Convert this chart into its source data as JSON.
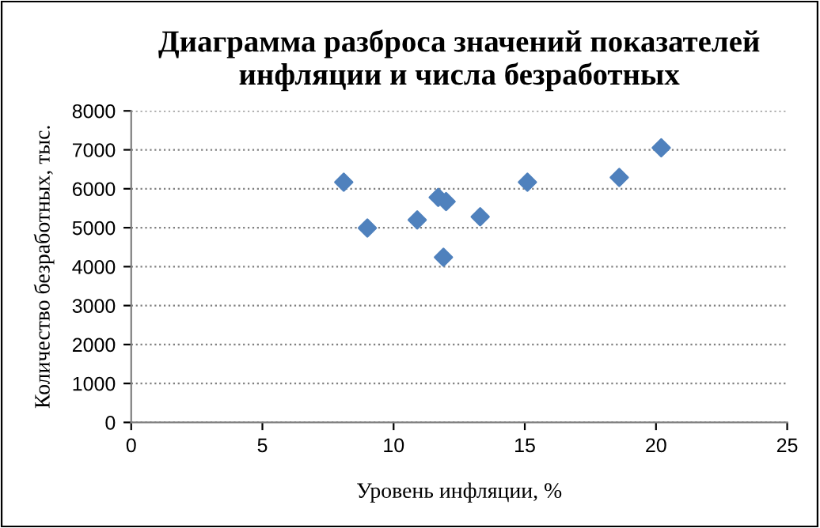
{
  "chart_data": {
    "type": "scatter",
    "title": "Диаграмма разброса значений показателей\nинфляции и числа безработных",
    "xlabel": "Уровень инфляции, %",
    "ylabel": "Количество безработных, тыс.",
    "x": [
      8.1,
      9.0,
      10.9,
      11.7,
      12.0,
      11.9,
      13.3,
      15.1,
      18.6,
      20.2
    ],
    "values": [
      6170,
      4990,
      5200,
      5780,
      5670,
      4240,
      5280,
      6170,
      6290,
      7050
    ],
    "color": "#4f81bd",
    "marker": "diamond",
    "grid": "y",
    "legend": false,
    "xlim": [
      0,
      25
    ],
    "xticks": [
      0,
      5,
      10,
      15,
      20,
      25
    ],
    "ylim": [
      0,
      8000
    ],
    "yticks": [
      0,
      1000,
      2000,
      3000,
      4000,
      5000,
      6000,
      7000,
      8000
    ]
  }
}
